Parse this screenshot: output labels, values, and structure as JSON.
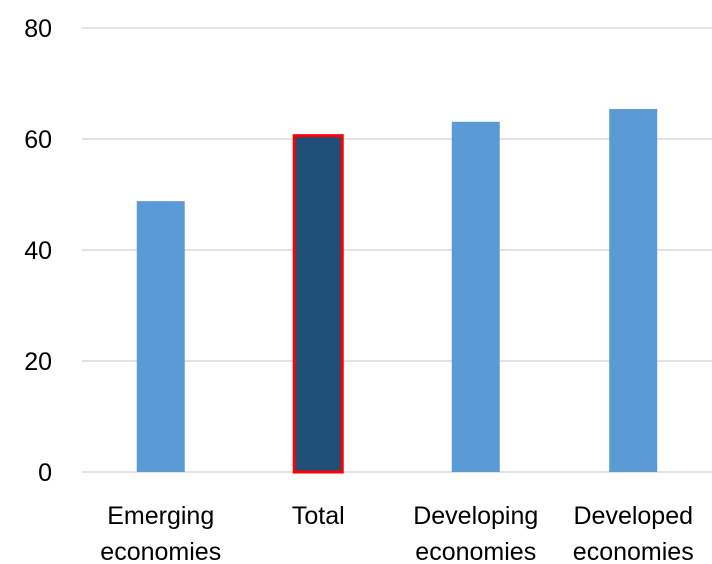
{
  "chart_data": {
    "type": "bar",
    "title": "",
    "xlabel": "",
    "ylabel": "",
    "categories": [
      [
        "Emerging",
        "economies"
      ],
      [
        "Total"
      ],
      [
        "Developing",
        "economies"
      ],
      [
        "Developed",
        "economies"
      ]
    ],
    "values": [
      48.8,
      60.6,
      63.1,
      65.4
    ],
    "highlight_index": 1,
    "ylim": [
      0,
      80
    ],
    "yticks": [
      0,
      20,
      40,
      60,
      80
    ],
    "grid": true,
    "legend": "none",
    "colors": {
      "bar": "#5b9bd5",
      "highlight_bar": "#1f4e79",
      "highlight_outline": "#ff0000",
      "grid": "#d9d9d9",
      "text": "#000000"
    }
  }
}
